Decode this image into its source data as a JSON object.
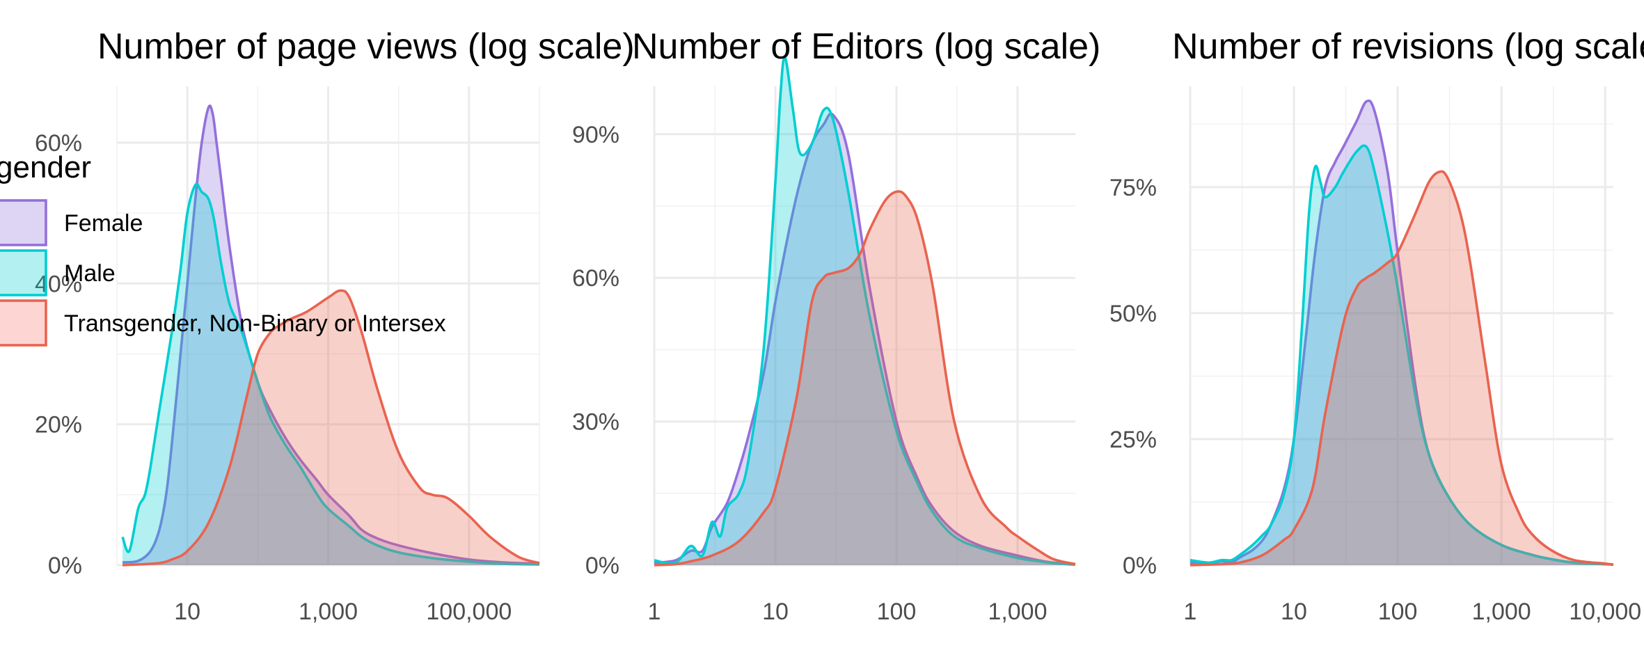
{
  "chart_data": [
    {
      "type": "area",
      "title": "Number of page views (log scale)",
      "x_scale": "log10",
      "xlim": [
        1,
        1000000
      ],
      "x_ticks": [
        10,
        1000,
        100000
      ],
      "x_tick_labels": [
        "10",
        "1,000",
        "100,000"
      ],
      "ylim": [
        0,
        0.68
      ],
      "y_ticks": [
        0,
        0.2,
        0.4,
        0.6
      ],
      "y_tick_labels": [
        "0%",
        "20%",
        "40%",
        "60%"
      ],
      "grid": true,
      "series": [
        {
          "name": "Female",
          "x": [
            1.2,
            2,
            3,
            4,
            5,
            6,
            8,
            10,
            13,
            16,
            20,
            23,
            26,
            30,
            40,
            60,
            100,
            150,
            250,
            400,
            700,
            1000,
            2000,
            3000,
            5000,
            10000,
            30000,
            100000,
            300000,
            1000000
          ],
          "y": [
            0.004,
            0.006,
            0.02,
            0.05,
            0.1,
            0.17,
            0.3,
            0.4,
            0.52,
            0.6,
            0.65,
            0.64,
            0.6,
            0.55,
            0.45,
            0.34,
            0.26,
            0.22,
            0.18,
            0.15,
            0.12,
            0.1,
            0.07,
            0.05,
            0.038,
            0.028,
            0.017,
            0.008,
            0.004,
            0.002
          ]
        },
        {
          "name": "Male",
          "x": [
            1.2,
            1.5,
            2,
            2.5,
            3,
            4,
            6,
            8,
            10,
            13,
            16,
            20,
            24,
            30,
            40,
            60,
            100,
            150,
            250,
            400,
            700,
            1000,
            2000,
            3000,
            5000,
            10000,
            30000,
            100000,
            300000,
            1000000
          ],
          "y": [
            0.04,
            0.02,
            0.08,
            0.1,
            0.14,
            0.22,
            0.33,
            0.42,
            0.5,
            0.54,
            0.53,
            0.52,
            0.49,
            0.43,
            0.37,
            0.33,
            0.26,
            0.21,
            0.17,
            0.14,
            0.1,
            0.08,
            0.055,
            0.04,
            0.028,
            0.018,
            0.01,
            0.005,
            0.002,
            0.001
          ]
        },
        {
          "name": "Transgender, Non-Binary or Intersex",
          "x": [
            1.2,
            2,
            4,
            6,
            10,
            20,
            40,
            70,
            100,
            150,
            200,
            300,
            500,
            1000,
            1500,
            2000,
            3000,
            5000,
            10000,
            20000,
            30000,
            50000,
            100000,
            200000,
            500000,
            1000000
          ],
          "y": [
            0,
            0.001,
            0.003,
            0.008,
            0.02,
            0.06,
            0.14,
            0.24,
            0.3,
            0.33,
            0.34,
            0.35,
            0.36,
            0.38,
            0.39,
            0.38,
            0.33,
            0.25,
            0.16,
            0.11,
            0.1,
            0.095,
            0.07,
            0.04,
            0.012,
            0.003
          ]
        }
      ]
    },
    {
      "type": "area",
      "title": "Number of Editors (log scale)",
      "x_scale": "log10",
      "xlim": [
        1,
        3000
      ],
      "x_ticks": [
        1,
        10,
        100,
        1000
      ],
      "x_tick_labels": [
        "1",
        "10",
        "100",
        "1,000"
      ],
      "ylim": [
        0,
        1.0
      ],
      "y_ticks": [
        0,
        0.3,
        0.6,
        0.9
      ],
      "y_tick_labels": [
        "0%",
        "30%",
        "60%",
        "90%"
      ],
      "grid": true,
      "series": [
        {
          "name": "Female",
          "x": [
            1,
            1.5,
            2,
            2.5,
            3,
            4,
            5,
            6,
            8,
            10,
            13,
            16,
            20,
            25,
            30,
            40,
            60,
            100,
            150,
            200,
            300,
            500,
            1000,
            1500,
            2000,
            3000
          ],
          "y": [
            0.005,
            0.01,
            0.03,
            0.03,
            0.08,
            0.13,
            0.2,
            0.27,
            0.4,
            0.55,
            0.7,
            0.8,
            0.88,
            0.92,
            0.94,
            0.86,
            0.58,
            0.3,
            0.18,
            0.12,
            0.07,
            0.04,
            0.02,
            0.01,
            0.005,
            0.002
          ]
        },
        {
          "name": "Male",
          "x": [
            1,
            1.5,
            2,
            2.5,
            3,
            3.5,
            4,
            5,
            6,
            8,
            10,
            11,
            12,
            14,
            16,
            20,
            25,
            30,
            40,
            60,
            100,
            150,
            200,
            300,
            500,
            1000,
            1500,
            2000,
            3000
          ],
          "y": [
            0.01,
            0.005,
            0.04,
            0.02,
            0.09,
            0.06,
            0.12,
            0.15,
            0.22,
            0.45,
            0.8,
            0.98,
            1.06,
            0.95,
            0.86,
            0.88,
            0.95,
            0.93,
            0.78,
            0.52,
            0.28,
            0.17,
            0.11,
            0.06,
            0.035,
            0.015,
            0.008,
            0.004,
            0.001
          ]
        },
        {
          "name": "Transgender, Non-Binary or Intersex",
          "x": [
            1,
            1.5,
            2,
            3,
            5,
            8,
            10,
            15,
            20,
            25,
            30,
            40,
            50,
            60,
            80,
            100,
            120,
            150,
            200,
            300,
            500,
            800,
            1000,
            1500,
            2000,
            3000
          ],
          "y": [
            0,
            0.002,
            0.008,
            0.02,
            0.05,
            0.11,
            0.16,
            0.35,
            0.55,
            0.6,
            0.61,
            0.62,
            0.65,
            0.7,
            0.76,
            0.78,
            0.77,
            0.72,
            0.58,
            0.3,
            0.14,
            0.08,
            0.06,
            0.03,
            0.012,
            0.002
          ]
        }
      ]
    },
    {
      "type": "area",
      "title": "Number of revisions (log scale)",
      "x_scale": "log10",
      "xlim": [
        1,
        12000
      ],
      "x_ticks": [
        1,
        10,
        100,
        1000,
        10000
      ],
      "x_tick_labels": [
        "1",
        "10",
        "100",
        "1,000",
        "10,000"
      ],
      "ylim": [
        0,
        0.95
      ],
      "y_ticks": [
        0,
        0.25,
        0.5,
        0.75
      ],
      "y_tick_labels": [
        "0%",
        "25%",
        "50%",
        "75%"
      ],
      "grid": true,
      "series": [
        {
          "name": "Female",
          "x": [
            1,
            1.5,
            2,
            2.5,
            3,
            4,
            5,
            6,
            8,
            10,
            13,
            16,
            20,
            25,
            30,
            40,
            50,
            60,
            80,
            100,
            150,
            200,
            300,
            500,
            1000,
            2000,
            3000,
            5000,
            10000,
            12000
          ],
          "y": [
            0.005,
            0.003,
            0.008,
            0.005,
            0.015,
            0.03,
            0.05,
            0.08,
            0.15,
            0.25,
            0.45,
            0.62,
            0.75,
            0.8,
            0.83,
            0.88,
            0.92,
            0.9,
            0.78,
            0.62,
            0.35,
            0.22,
            0.14,
            0.08,
            0.04,
            0.02,
            0.012,
            0.005,
            0.002,
            0.001
          ]
        },
        {
          "name": "Male",
          "x": [
            1,
            1.5,
            2,
            2.5,
            3,
            4,
            5,
            6,
            8,
            10,
            12,
            14,
            16,
            18,
            20,
            25,
            30,
            40,
            50,
            60,
            80,
            100,
            150,
            200,
            300,
            500,
            1000,
            2000,
            3000,
            5000,
            10000,
            12000
          ],
          "y": [
            0.01,
            0.005,
            0.01,
            0.01,
            0.02,
            0.04,
            0.06,
            0.08,
            0.14,
            0.25,
            0.48,
            0.7,
            0.79,
            0.76,
            0.73,
            0.75,
            0.78,
            0.82,
            0.83,
            0.78,
            0.66,
            0.55,
            0.33,
            0.22,
            0.14,
            0.08,
            0.04,
            0.02,
            0.012,
            0.005,
            0.002,
            0.001
          ]
        },
        {
          "name": "Transgender, Non-Binary or Intersex",
          "x": [
            1,
            2,
            3,
            5,
            8,
            10,
            15,
            20,
            30,
            40,
            50,
            60,
            80,
            100,
            150,
            200,
            250,
            300,
            400,
            500,
            700,
            1000,
            1500,
            2000,
            3000,
            5000,
            10000,
            12000
          ],
          "y": [
            0,
            0.002,
            0.005,
            0.02,
            0.05,
            0.07,
            0.15,
            0.3,
            0.48,
            0.55,
            0.57,
            0.58,
            0.6,
            0.62,
            0.7,
            0.76,
            0.78,
            0.77,
            0.7,
            0.6,
            0.4,
            0.2,
            0.1,
            0.06,
            0.03,
            0.01,
            0.003,
            0.001
          ]
        }
      ]
    }
  ],
  "legend": {
    "title": "gender",
    "entries": [
      {
        "label": "Female",
        "line": "#9370DB",
        "fill": "#9370DB"
      },
      {
        "label": "Male",
        "line": "#00CED1",
        "fill": "#00CED1"
      },
      {
        "label": "Transgender, Non-Binary or Intersex",
        "line": "#E9634F",
        "fill": "#F8766D"
      }
    ]
  },
  "colors": {
    "Female": "#9370DB",
    "Male": "#00CED1",
    "Transgender, Non-Binary or Intersex": "#E9634F"
  }
}
